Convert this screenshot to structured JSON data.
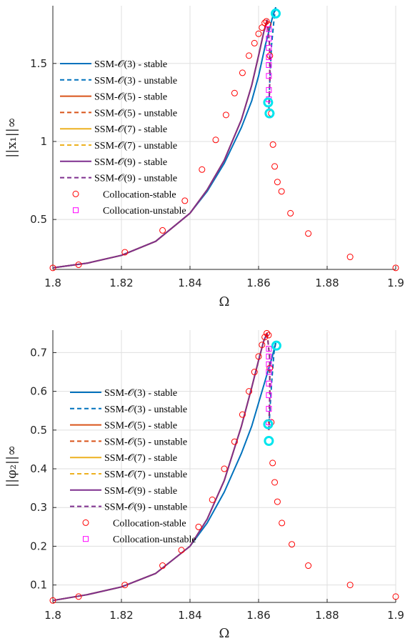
{
  "chart_data": [
    {
      "type": "line",
      "xlabel": "Ω",
      "ylabel": "||x₁||∞",
      "xlim": [
        1.8,
        1.9
      ],
      "ylim": [
        0.18,
        1.87
      ],
      "xticks": [
        1.8,
        1.82,
        1.84,
        1.86,
        1.88,
        1.9
      ],
      "xtick_labels": [
        "1.8",
        "1.82",
        "1.84",
        "1.86",
        "1.88",
        "1.9"
      ],
      "yticks": [
        0.5,
        1,
        1.5
      ],
      "ytick_labels": [
        "0.5",
        "1",
        "1.5"
      ],
      "grid": true,
      "legend_position": "left",
      "series": [
        {
          "name": "SSM-𝒪(3) - stable",
          "color": "#0072BD",
          "dash": "solid",
          "x": [
            1.8,
            1.81,
            1.82,
            1.83,
            1.84,
            1.845,
            1.85,
            1.855,
            1.858,
            1.86,
            1.862,
            1.864,
            1.865
          ],
          "y": [
            0.19,
            0.22,
            0.27,
            0.36,
            0.54,
            0.68,
            0.86,
            1.09,
            1.26,
            1.42,
            1.62,
            1.79,
            1.86
          ]
        },
        {
          "name": "SSM-𝒪(3) - unstable",
          "color": "#0072BD",
          "dash": "dashed",
          "x": [
            1.865,
            1.8645,
            1.8638,
            1.8633,
            1.863
          ],
          "y": [
            1.86,
            1.78,
            1.62,
            1.4,
            1.22
          ]
        },
        {
          "name": "SSM-𝒪(5) - stable",
          "color": "#D95319",
          "dash": "solid",
          "x": [
            1.8,
            1.81,
            1.82,
            1.83,
            1.84,
            1.845,
            1.85,
            1.855,
            1.858,
            1.86,
            1.8615,
            1.8625
          ],
          "y": [
            0.19,
            0.22,
            0.27,
            0.36,
            0.54,
            0.69,
            0.88,
            1.14,
            1.36,
            1.55,
            1.7,
            1.78
          ]
        },
        {
          "name": "SSM-𝒪(5) - unstable",
          "color": "#D95319",
          "dash": "dashed",
          "x": [
            1.8625,
            1.8632,
            1.8633,
            1.863
          ],
          "y": [
            1.78,
            1.62,
            1.4,
            1.2
          ]
        },
        {
          "name": "SSM-𝒪(7) - stable",
          "color": "#EDB120",
          "dash": "solid",
          "x": [
            1.8,
            1.81,
            1.82,
            1.83,
            1.84,
            1.845,
            1.85,
            1.855,
            1.858,
            1.86,
            1.8615,
            1.8625
          ],
          "y": [
            0.19,
            0.22,
            0.27,
            0.36,
            0.54,
            0.69,
            0.88,
            1.14,
            1.36,
            1.55,
            1.7,
            1.78
          ]
        },
        {
          "name": "SSM-𝒪(7) - unstable",
          "color": "#EDB120",
          "dash": "dashed",
          "x": [
            1.8625,
            1.8632,
            1.8633,
            1.863
          ],
          "y": [
            1.78,
            1.62,
            1.4,
            1.2
          ]
        },
        {
          "name": "SSM-𝒪(9) - stable",
          "color": "#7E2F8E",
          "dash": "solid",
          "x": [
            1.8,
            1.81,
            1.82,
            1.83,
            1.84,
            1.845,
            1.85,
            1.855,
            1.858,
            1.86,
            1.8615,
            1.8625
          ],
          "y": [
            0.19,
            0.22,
            0.27,
            0.36,
            0.54,
            0.69,
            0.88,
            1.14,
            1.36,
            1.55,
            1.7,
            1.78
          ]
        },
        {
          "name": "SSM-𝒪(9) - unstable",
          "color": "#7E2F8E",
          "dash": "dashed",
          "x": [
            1.8625,
            1.8632,
            1.8633,
            1.863
          ],
          "y": [
            1.78,
            1.62,
            1.4,
            1.2
          ]
        },
        {
          "name": "Collocation-stable",
          "color": "#FF0000",
          "marker": "circle",
          "x": [
            1.8,
            1.8075,
            1.821,
            1.832,
            1.8385,
            1.8435,
            1.8475,
            1.8505,
            1.853,
            1.8553,
            1.8572,
            1.8588,
            1.86,
            1.861,
            1.8618,
            1.8623,
            1.8628,
            1.8633,
            1.8637,
            1.8642,
            1.8647,
            1.8655,
            1.8667,
            1.8693,
            1.8745,
            1.8867,
            1.9
          ],
          "y": [
            0.19,
            0.21,
            0.29,
            0.43,
            0.62,
            0.82,
            1.01,
            1.17,
            1.31,
            1.44,
            1.55,
            1.63,
            1.69,
            1.73,
            1.76,
            1.77,
            1.75,
            1.55,
            1.18,
            0.98,
            0.84,
            0.74,
            0.68,
            0.54,
            0.41,
            0.26,
            0.19
          ]
        },
        {
          "name": "Collocation-unstable",
          "color": "#FF00FF",
          "marker": "square",
          "x": [
            1.863,
            1.863,
            1.863,
            1.863,
            1.863,
            1.863,
            1.863,
            1.863
          ],
          "y": [
            1.27,
            1.33,
            1.42,
            1.49,
            1.54,
            1.6,
            1.66,
            1.72
          ]
        },
        {
          "name": "",
          "color": "#00E5EE",
          "marker": "big-circle",
          "x": [
            1.865,
            1.8628,
            1.8632
          ],
          "y": [
            1.82,
            1.25,
            1.18
          ]
        }
      ]
    },
    {
      "type": "line",
      "xlabel": "Ω",
      "ylabel": "||φ₂||∞",
      "xlim": [
        1.8,
        1.9
      ],
      "ylim": [
        0.055,
        0.758
      ],
      "xticks": [
        1.8,
        1.82,
        1.84,
        1.86,
        1.88,
        1.9
      ],
      "xtick_labels": [
        "1.8",
        "1.82",
        "1.84",
        "1.86",
        "1.88",
        "1.9"
      ],
      "yticks": [
        0.1,
        0.2,
        0.3,
        0.4,
        0.5,
        0.6,
        0.7
      ],
      "ytick_labels": [
        "0.1",
        "0.2",
        "0.3",
        "0.4",
        "0.5",
        "0.6",
        "0.7"
      ],
      "grid": true,
      "legend_position": "left",
      "series": [
        {
          "name": "SSM-𝒪(3) - stable",
          "color": "#0072BD",
          "dash": "solid",
          "x": [
            1.8,
            1.81,
            1.82,
            1.83,
            1.84,
            1.845,
            1.85,
            1.855,
            1.858,
            1.86,
            1.862,
            1.864,
            1.865
          ],
          "y": [
            0.06,
            0.075,
            0.095,
            0.13,
            0.2,
            0.26,
            0.34,
            0.44,
            0.51,
            0.57,
            0.63,
            0.69,
            0.725
          ]
        },
        {
          "name": "SSM-𝒪(3) - unstable",
          "color": "#0072BD",
          "dash": "dashed",
          "x": [
            1.865,
            1.8645,
            1.8638,
            1.8633,
            1.863
          ],
          "y": [
            0.725,
            0.7,
            0.62,
            0.55,
            0.5
          ]
        },
        {
          "name": "SSM-𝒪(5) - stable",
          "color": "#D95319",
          "dash": "solid",
          "x": [
            1.8,
            1.81,
            1.82,
            1.83,
            1.84,
            1.845,
            1.85,
            1.855,
            1.858,
            1.86,
            1.8615,
            1.8625
          ],
          "y": [
            0.06,
            0.075,
            0.095,
            0.13,
            0.2,
            0.27,
            0.37,
            0.51,
            0.61,
            0.68,
            0.73,
            0.75
          ]
        },
        {
          "name": "SSM-𝒪(5) - unstable",
          "color": "#D95319",
          "dash": "dashed",
          "x": [
            1.8625,
            1.8632,
            1.8633,
            1.863
          ],
          "y": [
            0.75,
            0.69,
            0.6,
            0.5
          ]
        },
        {
          "name": "SSM-𝒪(7) - stable",
          "color": "#EDB120",
          "dash": "solid",
          "x": [
            1.8,
            1.81,
            1.82,
            1.83,
            1.84,
            1.845,
            1.85,
            1.855,
            1.858,
            1.86,
            1.8615,
            1.8625
          ],
          "y": [
            0.06,
            0.075,
            0.095,
            0.13,
            0.2,
            0.27,
            0.37,
            0.51,
            0.61,
            0.68,
            0.73,
            0.75
          ]
        },
        {
          "name": "SSM-𝒪(7) - unstable",
          "color": "#EDB120",
          "dash": "dashed",
          "x": [
            1.8625,
            1.8632,
            1.8633,
            1.863
          ],
          "y": [
            0.75,
            0.69,
            0.6,
            0.5
          ]
        },
        {
          "name": "SSM-𝒪(9) - stable",
          "color": "#7E2F8E",
          "dash": "solid",
          "x": [
            1.8,
            1.81,
            1.82,
            1.83,
            1.84,
            1.845,
            1.85,
            1.855,
            1.858,
            1.86,
            1.8615,
            1.8625
          ],
          "y": [
            0.06,
            0.075,
            0.095,
            0.13,
            0.2,
            0.27,
            0.37,
            0.51,
            0.61,
            0.68,
            0.73,
            0.75
          ]
        },
        {
          "name": "SSM-𝒪(9) - unstable",
          "color": "#7E2F8E",
          "dash": "dashed",
          "x": [
            1.8625,
            1.8632,
            1.8633,
            1.863
          ],
          "y": [
            0.75,
            0.69,
            0.6,
            0.5
          ]
        },
        {
          "name": "Collocation-stable",
          "color": "#FF0000",
          "marker": "circle",
          "x": [
            1.8,
            1.8075,
            1.821,
            1.832,
            1.8375,
            1.8425,
            1.8465,
            1.85,
            1.853,
            1.8553,
            1.8572,
            1.8588,
            1.86,
            1.861,
            1.8618,
            1.8624,
            1.8629,
            1.8633,
            1.8637,
            1.8641,
            1.8647,
            1.8655,
            1.8668,
            1.8697,
            1.8745,
            1.8867,
            1.9
          ],
          "y": [
            0.06,
            0.07,
            0.1,
            0.15,
            0.19,
            0.25,
            0.32,
            0.4,
            0.47,
            0.54,
            0.6,
            0.65,
            0.69,
            0.72,
            0.74,
            0.75,
            0.745,
            0.66,
            0.52,
            0.415,
            0.365,
            0.315,
            0.26,
            0.205,
            0.15,
            0.1,
            0.07
          ]
        },
        {
          "name": "Collocation-unstable",
          "color": "#FF00FF",
          "marker": "square",
          "x": [
            1.863,
            1.863,
            1.863,
            1.863,
            1.863,
            1.863,
            1.863,
            1.863
          ],
          "y": [
            0.52,
            0.555,
            0.59,
            0.62,
            0.65,
            0.67,
            0.69,
            0.71
          ]
        },
        {
          "name": "",
          "color": "#00E5EE",
          "marker": "big-circle",
          "x": [
            1.8652,
            1.8628,
            1.863
          ],
          "y": [
            0.718,
            0.515,
            0.472
          ]
        }
      ]
    }
  ]
}
